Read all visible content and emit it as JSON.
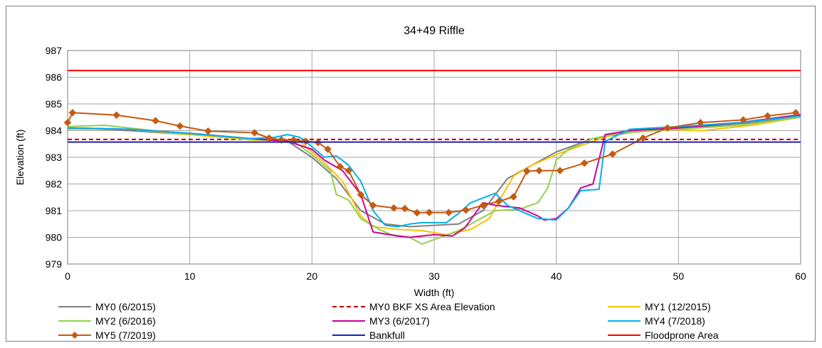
{
  "chart_data": {
    "type": "line",
    "title": "34+49 Riffle",
    "xlabel": "Width (ft)",
    "ylabel": "Elevation (ft)",
    "xlim": [
      0,
      60
    ],
    "ylim": [
      979,
      987
    ],
    "xticks": [
      0,
      10,
      20,
      30,
      40,
      50,
      60
    ],
    "yticks": [
      979,
      980,
      981,
      982,
      983,
      984,
      985,
      986,
      987
    ],
    "grid": true,
    "legend_position": "bottom",
    "series": [
      {
        "name": "MY0 (6/2015)",
        "color": "#808080",
        "style": "solid",
        "points": [
          [
            0,
            984.1
          ],
          [
            5,
            984.0
          ],
          [
            10,
            983.85
          ],
          [
            15,
            983.7
          ],
          [
            18,
            983.6
          ],
          [
            20,
            983.0
          ],
          [
            22,
            982.2
          ],
          [
            24,
            981.0
          ],
          [
            26,
            980.5
          ],
          [
            28,
            980.4
          ],
          [
            30,
            980.45
          ],
          [
            32,
            980.5
          ],
          [
            34,
            981.0
          ],
          [
            36,
            982.2
          ],
          [
            38,
            982.7
          ],
          [
            40,
            983.2
          ],
          [
            43,
            983.7
          ],
          [
            47,
            984.0
          ],
          [
            52,
            984.15
          ],
          [
            56,
            984.3
          ],
          [
            60,
            984.5
          ]
        ]
      },
      {
        "name": "MY0 BKF XS Area Elevation",
        "color": "#c00000",
        "style": "dashed",
        "points": [
          [
            0,
            983.67
          ],
          [
            60,
            983.67
          ]
        ]
      },
      {
        "name": "MY1 (12/2015)",
        "color": "#ffc000",
        "style": "solid",
        "points": [
          [
            0,
            984.05
          ],
          [
            5,
            984.05
          ],
          [
            10,
            983.85
          ],
          [
            15,
            983.65
          ],
          [
            19,
            983.6
          ],
          [
            21,
            982.8
          ],
          [
            22.5,
            982.1
          ],
          [
            24,
            980.8
          ],
          [
            25,
            980.4
          ],
          [
            27,
            980.3
          ],
          [
            29,
            980.25
          ],
          [
            31,
            980.1
          ],
          [
            33,
            980.3
          ],
          [
            34.5,
            980.7
          ],
          [
            35.5,
            981.5
          ],
          [
            36.5,
            982.3
          ],
          [
            38,
            982.7
          ],
          [
            40,
            983.1
          ],
          [
            43,
            983.6
          ],
          [
            45,
            983.9
          ],
          [
            48,
            984.05
          ],
          [
            52,
            984.0
          ],
          [
            56,
            984.2
          ],
          [
            60,
            984.5
          ]
        ]
      },
      {
        "name": "MY2 (6/2016)",
        "color": "#92d050",
        "style": "solid",
        "points": [
          [
            0,
            984.15
          ],
          [
            3,
            984.2
          ],
          [
            8,
            983.95
          ],
          [
            12,
            983.8
          ],
          [
            16,
            983.65
          ],
          [
            18.5,
            983.6
          ],
          [
            20,
            983.1
          ],
          [
            21.5,
            982.5
          ],
          [
            22,
            981.6
          ],
          [
            23,
            981.4
          ],
          [
            24,
            980.7
          ],
          [
            25.5,
            980.3
          ],
          [
            26.5,
            980.1
          ],
          [
            28,
            980.0
          ],
          [
            29,
            979.75
          ],
          [
            30.5,
            980.0
          ],
          [
            32,
            980.25
          ],
          [
            33,
            980.5
          ],
          [
            35,
            981.0
          ],
          [
            37,
            981.05
          ],
          [
            38.5,
            981.3
          ],
          [
            39.3,
            981.85
          ],
          [
            40,
            982.9
          ],
          [
            41,
            983.3
          ],
          [
            43,
            983.7
          ],
          [
            45,
            983.9
          ],
          [
            50,
            984.05
          ],
          [
            55,
            984.2
          ],
          [
            60,
            984.5
          ]
        ]
      },
      {
        "name": "MY3 (6/2017)",
        "color": "#cc0099",
        "style": "solid",
        "points": [
          [
            0,
            984.1
          ],
          [
            5,
            984.05
          ],
          [
            10,
            983.9
          ],
          [
            15,
            983.7
          ],
          [
            18,
            983.6
          ],
          [
            20,
            983.3
          ],
          [
            21,
            982.9
          ],
          [
            22.5,
            982.5
          ],
          [
            24,
            981.6
          ],
          [
            25,
            980.2
          ],
          [
            27,
            980.05
          ],
          [
            28,
            980.0
          ],
          [
            30,
            980.1
          ],
          [
            31.5,
            980.05
          ],
          [
            32.5,
            980.35
          ],
          [
            34,
            981.3
          ],
          [
            35,
            981.2
          ],
          [
            37,
            981.1
          ],
          [
            38.5,
            980.8
          ],
          [
            39,
            980.65
          ],
          [
            40,
            980.7
          ],
          [
            41,
            981.1
          ],
          [
            42,
            981.85
          ],
          [
            43,
            982.0
          ],
          [
            44,
            983.85
          ],
          [
            46,
            984.0
          ],
          [
            50,
            984.1
          ],
          [
            55,
            984.3
          ],
          [
            60,
            984.6
          ]
        ]
      },
      {
        "name": "MY4 (7/2018)",
        "color": "#00b0f0",
        "style": "solid",
        "points": [
          [
            0,
            984.1
          ],
          [
            5,
            984.05
          ],
          [
            10,
            983.9
          ],
          [
            15,
            983.7
          ],
          [
            17,
            983.75
          ],
          [
            18,
            983.85
          ],
          [
            19,
            983.75
          ],
          [
            20,
            983.4
          ],
          [
            21,
            983.0
          ],
          [
            22,
            983.05
          ],
          [
            23,
            982.7
          ],
          [
            24,
            982.1
          ],
          [
            25,
            981.0
          ],
          [
            26,
            980.45
          ],
          [
            27,
            980.4
          ],
          [
            28,
            980.5
          ],
          [
            29,
            980.55
          ],
          [
            31,
            980.55
          ],
          [
            32,
            980.9
          ],
          [
            33,
            981.3
          ],
          [
            35,
            981.65
          ],
          [
            36,
            981.2
          ],
          [
            37.5,
            980.9
          ],
          [
            38.5,
            980.7
          ],
          [
            40,
            980.65
          ],
          [
            41,
            981.1
          ],
          [
            42,
            981.75
          ],
          [
            43.5,
            981.8
          ],
          [
            44,
            983.6
          ],
          [
            46,
            984.05
          ],
          [
            50,
            984.15
          ],
          [
            55,
            984.3
          ],
          [
            60,
            984.55
          ]
        ]
      },
      {
        "name": "MY5 (7/2019)",
        "color": "#c55a11",
        "style": "solid",
        "marker": "diamond",
        "points": [
          [
            0,
            984.3
          ],
          [
            0.4,
            984.67
          ],
          [
            4,
            984.58
          ],
          [
            7.2,
            984.37
          ],
          [
            9.2,
            984.17
          ],
          [
            11.5,
            983.98
          ],
          [
            15.3,
            983.92
          ],
          [
            16.5,
            983.72
          ],
          [
            17.5,
            983.65
          ],
          [
            18.5,
            983.65
          ],
          [
            19.5,
            983.6
          ],
          [
            20.5,
            983.55
          ],
          [
            21.3,
            983.3
          ],
          [
            22.3,
            982.65
          ],
          [
            23,
            982.5
          ],
          [
            24,
            981.6
          ],
          [
            25,
            981.2
          ],
          [
            26.7,
            981.1
          ],
          [
            27.6,
            981.08
          ],
          [
            28.6,
            980.92
          ],
          [
            29.6,
            980.93
          ],
          [
            31.2,
            980.93
          ],
          [
            32.6,
            981.02
          ],
          [
            34,
            981.2
          ],
          [
            35.3,
            981.35
          ],
          [
            36.5,
            981.52
          ],
          [
            37.6,
            982.48
          ],
          [
            38.6,
            982.5
          ],
          [
            40.3,
            982.5
          ],
          [
            42.3,
            982.78
          ],
          [
            44.6,
            983.12
          ],
          [
            47.1,
            983.72
          ],
          [
            49.1,
            984.1
          ],
          [
            51.8,
            984.3
          ],
          [
            55.3,
            984.4
          ],
          [
            57.3,
            984.55
          ],
          [
            59.6,
            984.67
          ]
        ]
      },
      {
        "name": "Bankfull",
        "color": "#1f1fb4",
        "style": "solid",
        "points": [
          [
            0,
            983.57
          ],
          [
            60,
            983.57
          ]
        ]
      },
      {
        "name": "Floodprone Area",
        "color": "#ff0000",
        "style": "solid",
        "points": [
          [
            0,
            986.25
          ],
          [
            60,
            986.25
          ]
        ]
      }
    ]
  },
  "legend": [
    {
      "label": "MY0 (6/2015)",
      "color": "#808080",
      "style": "solid"
    },
    {
      "label": "MY0 BKF XS Area Elevation",
      "color": "#c00000",
      "style": "dashed"
    },
    {
      "label": "MY1 (12/2015)",
      "color": "#ffc000",
      "style": "solid"
    },
    {
      "label": "MY2 (6/2016)",
      "color": "#92d050",
      "style": "solid"
    },
    {
      "label": "MY3 (6/2017)",
      "color": "#cc0099",
      "style": "solid"
    },
    {
      "label": "MY4 (7/2018)",
      "color": "#00b0f0",
      "style": "solid"
    },
    {
      "label": "MY5 (7/2019)",
      "color": "#c55a11",
      "style": "solid",
      "marker": "diamond"
    },
    {
      "label": "Bankfull",
      "color": "#1f1fb4",
      "style": "solid"
    },
    {
      "label": "Floodprone Area",
      "color": "#ff0000",
      "style": "solid"
    }
  ]
}
